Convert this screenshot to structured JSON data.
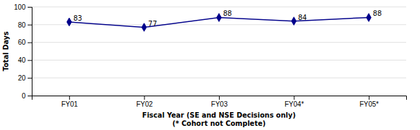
{
  "chart_data": {
    "type": "line",
    "categories": [
      "FY01",
      "FY02",
      "FY03",
      "FY04*",
      "FY05*"
    ],
    "values": [
      83,
      77,
      88,
      84,
      88
    ],
    "color": "#00008B",
    "marker": "diamond",
    "line_style": "solid",
    "xlabel": "Fiscal Year (SE and NSE Decisions only)\n(* Cohort not Complete)",
    "ylabel": "Total Days",
    "ylim": [
      0,
      100
    ],
    "yticks": [
      0,
      20,
      40,
      60,
      80,
      100
    ],
    "grid": true,
    "data_labels": true
  }
}
